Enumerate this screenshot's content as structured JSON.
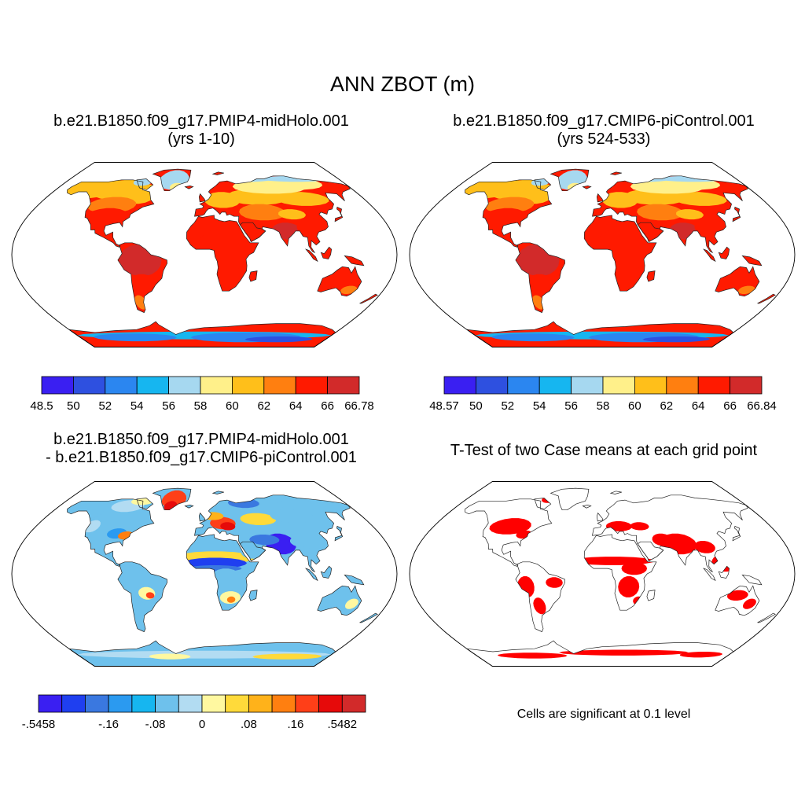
{
  "title": "ANN ZBOT (m)",
  "panels": [
    {
      "id": "midholo",
      "title_line1": "b.e21.B1850.f09_g17.PMIP4-midHolo.001",
      "title_line2": "(yrs 1-10)",
      "colorbar": {
        "colors": [
          "#3a1ff2",
          "#2e50e0",
          "#2b86f0",
          "#16b6f0",
          "#a6d8f0",
          "#fff08a",
          "#ffbf1a",
          "#ff7f10",
          "#ff1a00",
          "#d22a2a"
        ],
        "labels": [
          "48.5",
          "50",
          "52",
          "54",
          "56",
          "58",
          "60",
          "62",
          "64",
          "66",
          "66.78"
        ]
      }
    },
    {
      "id": "picontrol",
      "title_line1": "b.e21.B1850.f09_g17.CMIP6-piControl.001",
      "title_line2": "(yrs 524-533)",
      "colorbar": {
        "colors": [
          "#3a1ff2",
          "#2e50e0",
          "#2b86f0",
          "#16b6f0",
          "#a6d8f0",
          "#fff08a",
          "#ffbf1a",
          "#ff7f10",
          "#ff1a00",
          "#d22a2a"
        ],
        "labels": [
          "48.57",
          "50",
          "52",
          "54",
          "56",
          "58",
          "60",
          "62",
          "64",
          "66",
          "66.84"
        ]
      }
    },
    {
      "id": "difference",
      "title_line1": "b.e21.B1850.f09_g17.PMIP4-midHolo.001",
      "title_line2": "- b.e21.B1850.f09_g17.CMIP6-piControl.001",
      "colorbar": {
        "colors": [
          "#3a1ff2",
          "#1f3ff0",
          "#3a78e0",
          "#2b9af0",
          "#16b6f0",
          "#6ec1ec",
          "#b2dcf2",
          "#fff8a0",
          "#ffda3a",
          "#ffb21a",
          "#ff7f10",
          "#ff3f18",
          "#e60a0a",
          "#d22a2a"
        ],
        "labels": [
          "-.5458",
          "",
          "",
          "-.16",
          "",
          "-.08",
          "",
          "0",
          "",
          ".08",
          "",
          ".16",
          "",
          ".5482"
        ]
      }
    },
    {
      "id": "ttest",
      "title_line1": "T-Test of two Case means at each grid point",
      "note": "Cells are significant at 0.1 level",
      "sig_color": "#ff0000"
    }
  ]
}
